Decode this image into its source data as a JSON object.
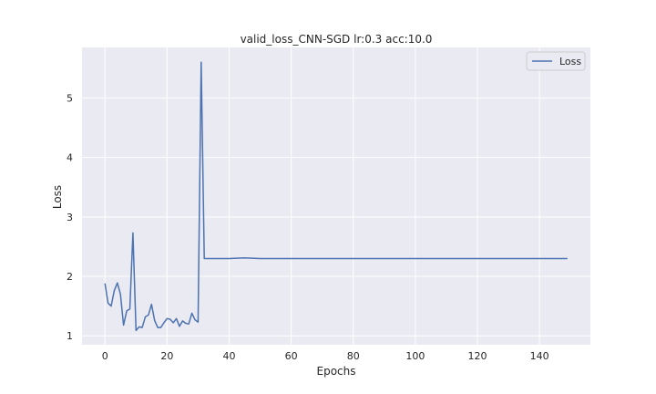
{
  "chart_data": {
    "type": "line",
    "title": "valid_loss_CNN-SGD lr:0.3 acc:10.0",
    "xlabel": "Epochs",
    "ylabel": "Loss",
    "xlim": [
      -7.4,
      156.4
    ],
    "ylim": [
      0.85,
      5.85
    ],
    "xticks": [
      0,
      20,
      40,
      60,
      80,
      100,
      120,
      140
    ],
    "yticks": [
      1,
      2,
      3,
      4,
      5
    ],
    "grid": true,
    "legend_position": "top-right",
    "colors": {
      "background": "#eaeaf2",
      "grid": "#ffffff",
      "line": "#4c72b0"
    },
    "series": [
      {
        "name": "Loss",
        "x": [
          0,
          1,
          2,
          3,
          4,
          5,
          6,
          7,
          8,
          9,
          10,
          11,
          12,
          13,
          14,
          15,
          16,
          17,
          18,
          19,
          20,
          21,
          22,
          23,
          24,
          25,
          26,
          27,
          28,
          29,
          30,
          31,
          32,
          40,
          45,
          50,
          149
        ],
        "y": [
          1.88,
          1.55,
          1.5,
          1.76,
          1.89,
          1.7,
          1.18,
          1.42,
          1.45,
          2.73,
          1.09,
          1.15,
          1.14,
          1.32,
          1.35,
          1.53,
          1.26,
          1.14,
          1.14,
          1.22,
          1.29,
          1.28,
          1.22,
          1.29,
          1.16,
          1.25,
          1.21,
          1.2,
          1.38,
          1.27,
          1.23,
          5.6,
          2.3,
          2.3,
          2.31,
          2.3,
          2.3
        ]
      }
    ]
  }
}
